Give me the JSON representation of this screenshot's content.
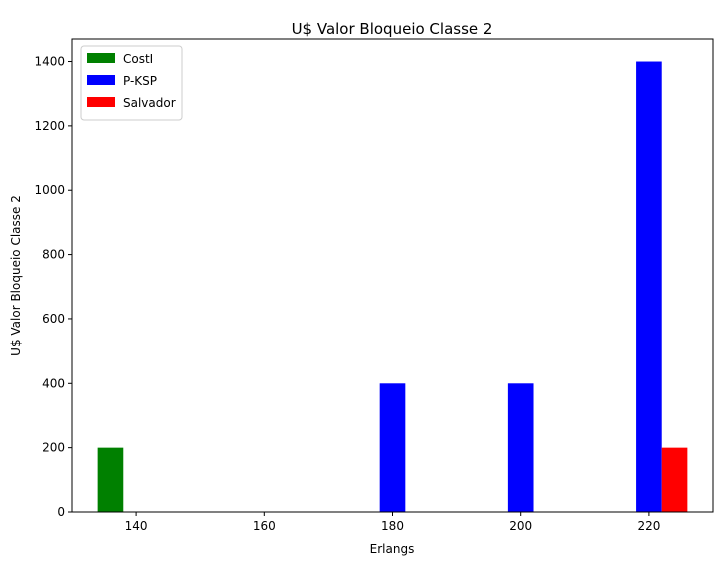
{
  "chart_data": {
    "type": "bar",
    "title": "U$ Valor Bloqueio Classe 2",
    "xlabel": "Erlangs",
    "ylabel": "U$ Valor Bloqueio Classe 2",
    "xlim": [
      130,
      230
    ],
    "ylim": [
      0,
      1470
    ],
    "x_ticks": [
      140,
      160,
      180,
      200,
      220
    ],
    "y_ticks": [
      0,
      200,
      400,
      600,
      800,
      1000,
      1200,
      1400
    ],
    "grid": false,
    "legend_position": "top-left",
    "bar_width": 4,
    "series": [
      {
        "name": "CostI",
        "color": "#008000",
        "offset": -4,
        "points": [
          {
            "x": 140,
            "y": 200
          },
          {
            "x": 180,
            "y": 0
          },
          {
            "x": 200,
            "y": 0
          },
          {
            "x": 220,
            "y": 0
          }
        ]
      },
      {
        "name": "P-KSP",
        "color": "#0000ff",
        "offset": 0,
        "points": [
          {
            "x": 140,
            "y": 0
          },
          {
            "x": 180,
            "y": 400
          },
          {
            "x": 200,
            "y": 400
          },
          {
            "x": 220,
            "y": 1400
          }
        ]
      },
      {
        "name": "Salvador",
        "color": "#ff0000",
        "offset": 4,
        "points": [
          {
            "x": 140,
            "y": 0
          },
          {
            "x": 180,
            "y": 0
          },
          {
            "x": 200,
            "y": 0
          },
          {
            "x": 220,
            "y": 200
          }
        ]
      }
    ]
  }
}
